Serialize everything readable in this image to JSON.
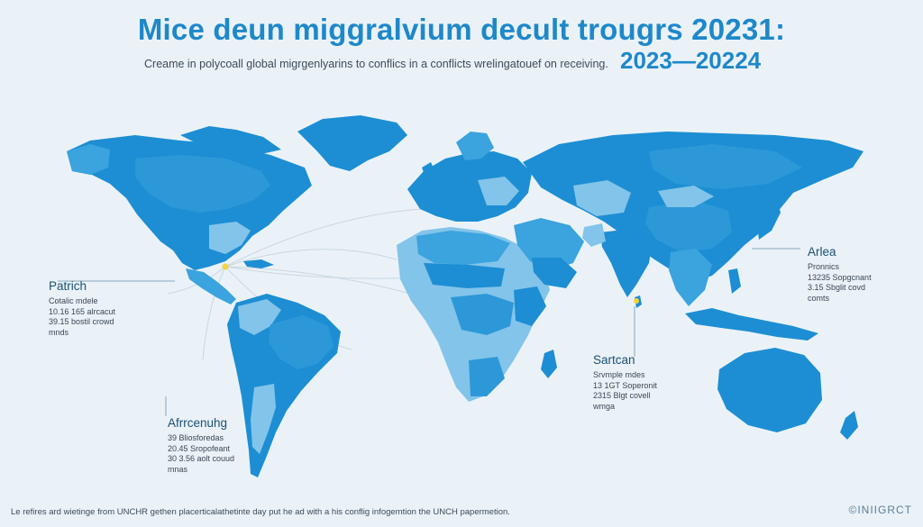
{
  "header": {
    "title": "Mice deun miggralvium decult trougrs 20231:",
    "subtitle": "Creame in polycoall global migrgenlyarins to conflics in a conflicts wrelingatouef on receiving.",
    "years": "2023—20224"
  },
  "colors": {
    "land_dark": "#1d8ed3",
    "land_mid": "#3ba3de",
    "land_light": "#83c4ea",
    "accent_yellow": "#f5d33a",
    "flow_line": "#c9d6df"
  },
  "callouts": {
    "patrich": {
      "name": "Patrich",
      "lines": [
        "Cotalic mdele",
        "10.16 165 alrcacut",
        "39.15 bostil crowd",
        "mnds"
      ]
    },
    "arlea": {
      "name": "Arlea",
      "lines": [
        "Pronnics",
        "13235 Sopgcnant",
        "3.15 Sbglit covd",
        "comts"
      ]
    },
    "sartcan": {
      "name": "Sartcan",
      "lines": [
        "Srvmple mdes",
        "13 1GT Soperonit",
        "2315 Blgt covell",
        "wmga"
      ]
    },
    "afrrcenuhg": {
      "name": "Afrrcenuhg",
      "lines": [
        "39 Bliosforedas",
        "20.45 Sropofeant",
        "30 3.56 aolt couud",
        "mnas"
      ]
    }
  },
  "footer": {
    "text": "Le refires ard wietinge from UNCHR gethen placerticalathetinte day put he ad with a his conflig infogemtion the UNCH papermetion.",
    "brand": "©INIIGRCT"
  }
}
